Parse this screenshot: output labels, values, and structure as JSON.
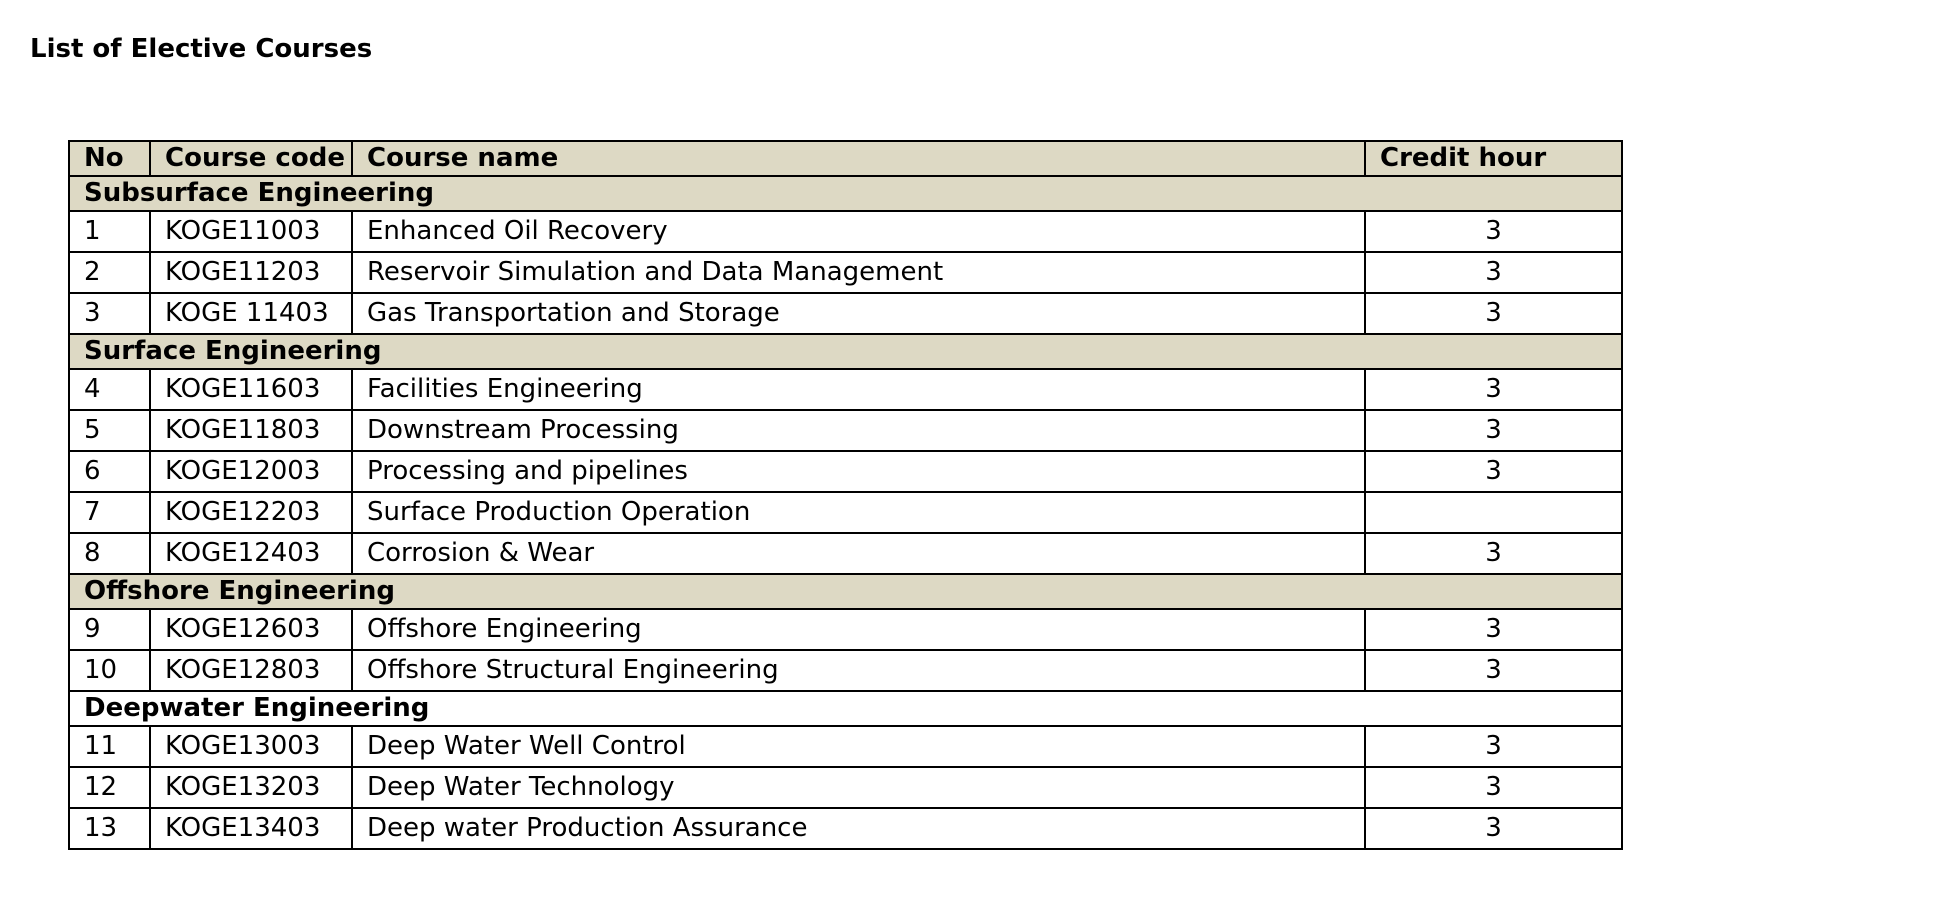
{
  "page": {
    "title": "List of Elective Courses"
  },
  "table": {
    "headers": {
      "no": "No",
      "code": "Course code",
      "name": "Course name",
      "credit": "Credit hour"
    },
    "sections": [
      {
        "title": "Subsurface Engineering",
        "shaded": true,
        "rows": [
          {
            "no": "1",
            "code": "KOGE11003",
            "name": "Enhanced Oil Recovery",
            "credit": "3"
          },
          {
            "no": "2",
            "code": "KOGE11203",
            "name": "Reservoir Simulation and Data Management",
            "credit": "3"
          },
          {
            "no": "3",
            "code": "KOGE 11403",
            "name": "Gas Transportation and Storage",
            "credit": "3"
          }
        ]
      },
      {
        "title": "Surface Engineering",
        "shaded": true,
        "rows": [
          {
            "no": "4",
            "code": "KOGE11603",
            "name": "Facilities Engineering",
            "credit": "3"
          },
          {
            "no": "5",
            "code": "KOGE11803",
            "name": "Downstream Processing",
            "credit": "3"
          },
          {
            "no": "6",
            "code": "KOGE12003",
            "name": "Processing and pipelines",
            "credit": "3"
          },
          {
            "no": "7",
            "code": "KOGE12203",
            "name": "Surface Production Operation",
            "credit": ""
          },
          {
            "no": "8",
            "code": "KOGE12403",
            "name": "Corrosion & Wear",
            "credit": "3"
          }
        ]
      },
      {
        "title": "Offshore Engineering",
        "shaded": true,
        "rows": [
          {
            "no": "9",
            "code": "KOGE12603",
            "name": "Offshore Engineering",
            "credit": "3"
          },
          {
            "no": "10",
            "code": "KOGE12803",
            "name": "Offshore Structural Engineering",
            "credit": "3"
          }
        ]
      },
      {
        "title": "Deepwater Engineering",
        "shaded": false,
        "rows": [
          {
            "no": "11",
            "code": "KOGE13003",
            "name": "Deep Water Well Control",
            "credit": "3"
          },
          {
            "no": "12",
            "code": "KOGE13203",
            "name": "Deep Water Technology",
            "credit": "3"
          },
          {
            "no": "13",
            "code": "KOGE13403",
            "name": "Deep water Production Assurance",
            "credit": "3"
          }
        ]
      }
    ]
  }
}
